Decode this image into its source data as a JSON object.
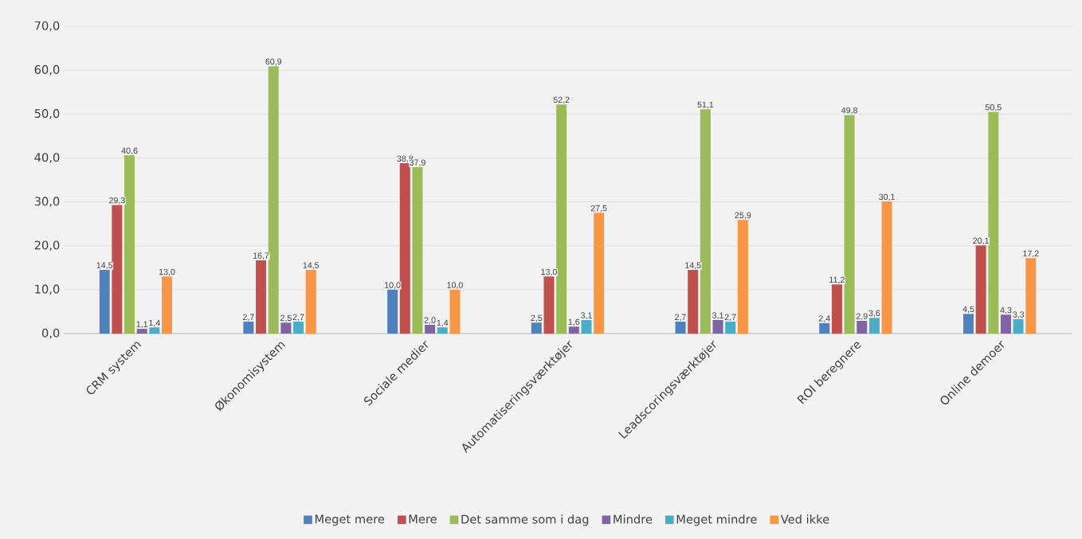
{
  "chart_data": {
    "type": "bar",
    "categories": [
      "CRM system",
      "Økonomisystem",
      "Sociale medier",
      "Automatiseringsværktøjer",
      "Leadscoringsværktøjer",
      "ROI beregnere",
      "Online demoer"
    ],
    "series": [
      {
        "name": "Meget mere",
        "color": "#4f81bd",
        "values": [
          14.5,
          2.7,
          10.0,
          2.5,
          2.7,
          2.4,
          4.5
        ],
        "value_labels": [
          "14,5",
          "2,7",
          "10,0",
          "2,5",
          "2,7",
          "2,4",
          "4,5"
        ]
      },
      {
        "name": "Mere",
        "color": "#c0504d",
        "values": [
          29.3,
          16.7,
          38.8,
          13.0,
          14.5,
          11.2,
          20.1
        ],
        "value_labels": [
          "29,3",
          "16,7",
          "38,8",
          "13,0",
          "14,5",
          "11,2",
          "20,1"
        ]
      },
      {
        "name": "Det samme som i dag",
        "color": "#9bbb59",
        "values": [
          40.6,
          60.9,
          37.9,
          52.2,
          51.1,
          49.8,
          50.5
        ],
        "value_labels": [
          "40,6",
          "60,9",
          "37,9",
          "52,2",
          "51,1",
          "49,8",
          "50,5"
        ]
      },
      {
        "name": "Mindre",
        "color": "#8064a2",
        "values": [
          1.1,
          2.5,
          2.0,
          1.6,
          3.1,
          2.9,
          4.3
        ],
        "value_labels": [
          "1,1",
          "2,5",
          "2,0",
          "1,6",
          "3,1",
          "2,9",
          "4,3"
        ]
      },
      {
        "name": "Meget mindre",
        "color": "#4bacc6",
        "values": [
          1.4,
          2.7,
          1.4,
          3.1,
          2.7,
          3.6,
          3.3
        ],
        "value_labels": [
          "1,4",
          "2,7",
          "1,4",
          "3,1",
          "2,7",
          "3,6",
          "3,3"
        ]
      },
      {
        "name": "Ved ikke",
        "color": "#f79646",
        "values": [
          13.0,
          14.5,
          10.0,
          27.5,
          25.9,
          30.1,
          17.2
        ],
        "value_labels": [
          "13,0",
          "14,5",
          "10,0",
          "27,5",
          "25,9",
          "30,1",
          "17,2"
        ]
      }
    ],
    "ylim": [
      0,
      70
    ],
    "yticks": [
      {
        "value": 0,
        "label": "0,0"
      },
      {
        "value": 10,
        "label": "10,0"
      },
      {
        "value": 20,
        "label": "20,0"
      },
      {
        "value": 30,
        "label": "30,0"
      },
      {
        "value": 40,
        "label": "40,0"
      },
      {
        "value": 50,
        "label": "50,0"
      },
      {
        "value": 60,
        "label": "60,0"
      },
      {
        "value": 70,
        "label": "70,0"
      }
    ],
    "grid": "y",
    "legend": "bottom"
  }
}
